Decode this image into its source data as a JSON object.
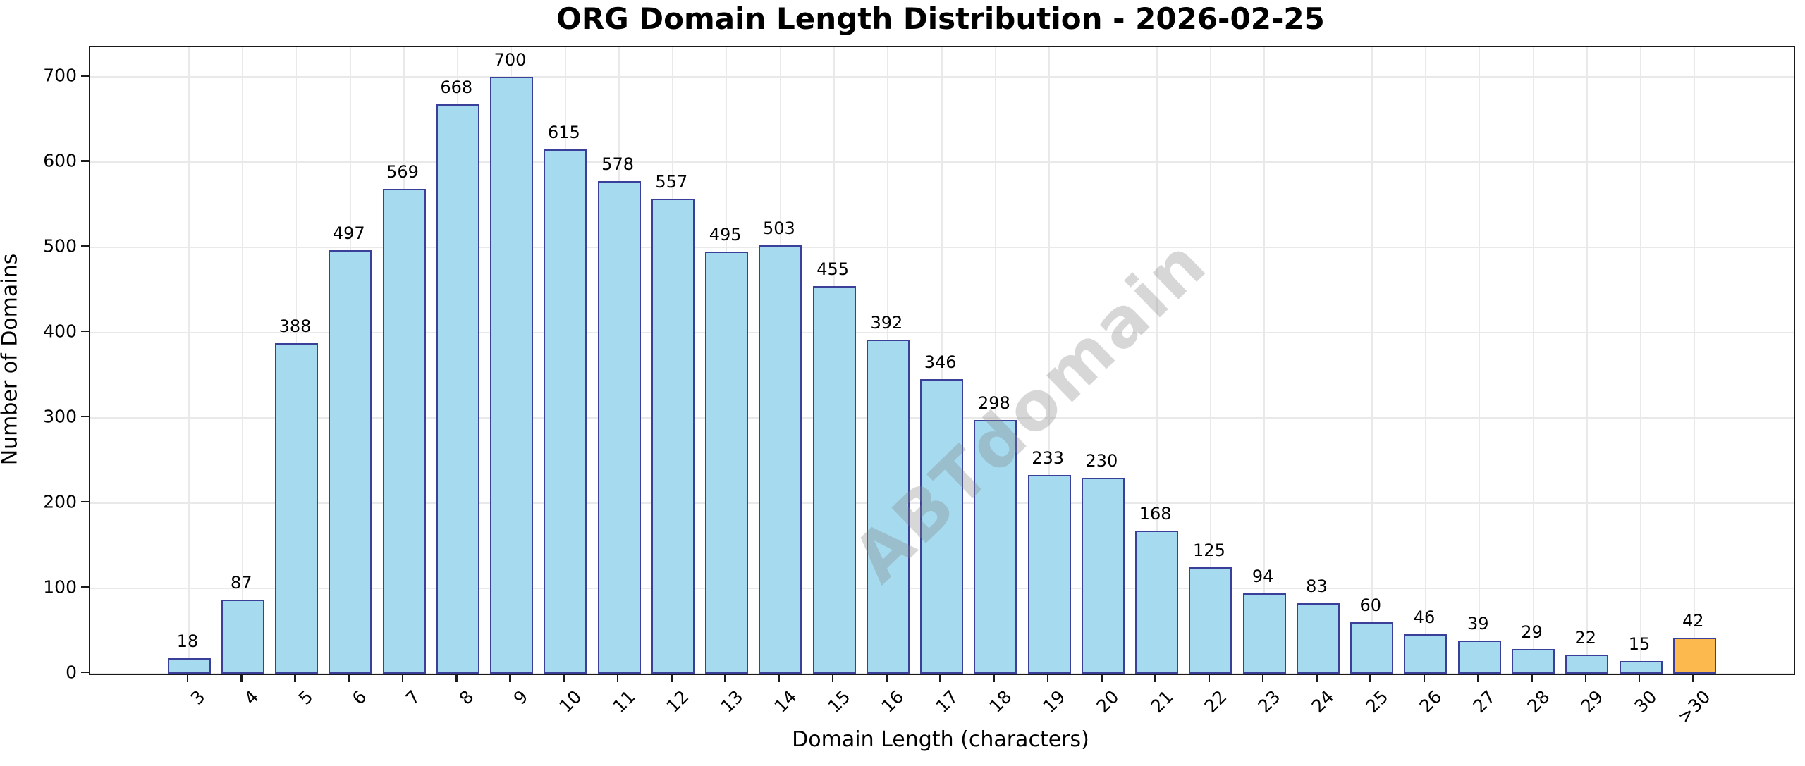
{
  "title": "ORG Domain Length Distribution - 2026-02-25",
  "watermark": "ABTdomain",
  "chart_data": {
    "type": "bar",
    "title": "ORG Domain Length Distribution - 2026-02-25",
    "xlabel": "Domain Length (characters)",
    "ylabel": "Number of Domains",
    "categories": [
      "3",
      "4",
      "5",
      "6",
      "7",
      "8",
      "9",
      "10",
      "11",
      "12",
      "13",
      "14",
      "15",
      "16",
      "17",
      "18",
      "19",
      "20",
      "21",
      "22",
      "23",
      "24",
      "25",
      "26",
      "27",
      "28",
      "29",
      "30",
      ">30"
    ],
    "values": [
      18,
      87,
      388,
      497,
      569,
      668,
      700,
      615,
      578,
      557,
      495,
      503,
      455,
      392,
      346,
      298,
      233,
      230,
      168,
      125,
      94,
      83,
      60,
      46,
      39,
      29,
      22,
      15,
      42
    ],
    "bar_value_labels": [
      "18",
      "87",
      "388",
      "497",
      "569",
      "668",
      "700",
      "615",
      "578",
      "557",
      "495",
      "503",
      "455",
      "392",
      "346",
      "298",
      "233",
      "230",
      "168",
      "125",
      "94",
      "83",
      "60",
      "46",
      "39",
      "29",
      "22",
      "15",
      "42"
    ],
    "yticks": [
      0,
      100,
      200,
      300,
      400,
      500,
      600,
      700
    ],
    "ylim": [
      0,
      735
    ],
    "grid": true,
    "legend_position": "none",
    "bar_color": "#a6dbef",
    "bar_edge_color": "#3a3f99",
    "highlight_index": 28,
    "highlight_color": "#fcb94e",
    "watermark_text": "ABTdomain"
  }
}
